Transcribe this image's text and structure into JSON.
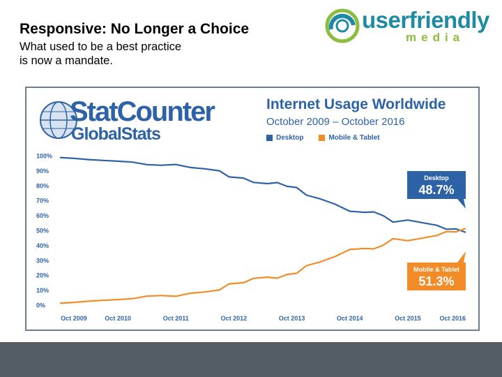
{
  "slide": {
    "title": "Responsive: No Longer a Choice",
    "subtitle_lines": [
      "What used to be a best practice",
      "is now a mandate."
    ]
  },
  "logo": {
    "word1": "userfriendly",
    "word2": "media"
  },
  "statcounter": {
    "word1": "StatCounter",
    "word2": "GlobalStats"
  },
  "colors": {
    "desktop": "#2d62a6",
    "mobile": "#f28c28",
    "frame": "#6a7f91",
    "bottom_bar": "#535d63"
  },
  "chart_data": {
    "type": "line",
    "title": "Internet Usage Worldwide",
    "subtitle": "October 2009 – October 2016",
    "x_ticks": [
      "Oct 2009",
      "Oct 2010",
      "Oct 2011",
      "Oct 2012",
      "Oct 2013",
      "Oct 2014",
      "Oct 2015",
      "Oct 2016"
    ],
    "y_ticks": [
      "0%",
      "10%",
      "20%",
      "30%",
      "40%",
      "50%",
      "60%",
      "70%",
      "80%",
      "90%",
      "100%"
    ],
    "ylim": [
      0,
      100
    ],
    "legend_position": "top",
    "series": [
      {
        "name": "Desktop",
        "final_label": "48.7%",
        "points": [
          [
            "2009-10-01",
            98.8
          ],
          [
            "2010-01-01",
            98.2
          ],
          [
            "2010-04-01",
            97.4
          ],
          [
            "2010-07-01",
            96.8
          ],
          [
            "2010-10-01",
            96.3
          ],
          [
            "2011-01-01",
            95.7
          ],
          [
            "2011-04-01",
            94.0
          ],
          [
            "2011-07-01",
            93.6
          ],
          [
            "2011-10-01",
            94.1
          ],
          [
            "2012-01-01",
            92.1
          ],
          [
            "2012-04-01",
            91.2
          ],
          [
            "2012-07-01",
            89.9
          ],
          [
            "2012-09-01",
            85.8
          ],
          [
            "2012-12-01",
            85.0
          ],
          [
            "2013-02-01",
            82.1
          ],
          [
            "2013-05-01",
            81.3
          ],
          [
            "2013-07-01",
            82.0
          ],
          [
            "2013-09-01",
            79.5
          ],
          [
            "2013-11-01",
            78.7
          ],
          [
            "2014-01-01",
            73.6
          ],
          [
            "2014-04-01",
            71.0
          ],
          [
            "2014-07-01",
            67.5
          ],
          [
            "2014-10-01",
            62.8
          ],
          [
            "2015-01-01",
            62.1
          ],
          [
            "2015-03-01",
            62.4
          ],
          [
            "2015-05-01",
            59.8
          ],
          [
            "2015-07-01",
            55.5
          ],
          [
            "2015-10-01",
            56.9
          ],
          [
            "2016-01-01",
            55.2
          ],
          [
            "2016-04-01",
            53.4
          ],
          [
            "2016-06-01",
            50.8
          ],
          [
            "2016-08-01",
            51.0
          ],
          [
            "2016-10-01",
            48.7
          ]
        ]
      },
      {
        "name": "Mobile & Tablet",
        "final_label": "51.3%",
        "points": [
          [
            "2009-10-01",
            1.2
          ],
          [
            "2010-01-01",
            1.8
          ],
          [
            "2010-04-01",
            2.6
          ],
          [
            "2010-07-01",
            3.2
          ],
          [
            "2010-10-01",
            3.7
          ],
          [
            "2011-01-01",
            4.3
          ],
          [
            "2011-04-01",
            6.0
          ],
          [
            "2011-07-01",
            6.4
          ],
          [
            "2011-10-01",
            5.9
          ],
          [
            "2012-01-01",
            7.9
          ],
          [
            "2012-04-01",
            8.8
          ],
          [
            "2012-07-01",
            10.1
          ],
          [
            "2012-09-01",
            14.2
          ],
          [
            "2012-12-01",
            15.0
          ],
          [
            "2013-02-01",
            17.9
          ],
          [
            "2013-05-01",
            18.7
          ],
          [
            "2013-07-01",
            18.0
          ],
          [
            "2013-09-01",
            20.5
          ],
          [
            "2013-11-01",
            21.3
          ],
          [
            "2014-01-01",
            26.4
          ],
          [
            "2014-04-01",
            29.0
          ],
          [
            "2014-07-01",
            32.5
          ],
          [
            "2014-10-01",
            37.2
          ],
          [
            "2015-01-01",
            37.9
          ],
          [
            "2015-03-01",
            37.6
          ],
          [
            "2015-05-01",
            40.2
          ],
          [
            "2015-07-01",
            44.5
          ],
          [
            "2015-10-01",
            43.1
          ],
          [
            "2016-01-01",
            44.8
          ],
          [
            "2016-04-01",
            46.6
          ],
          [
            "2016-06-01",
            49.2
          ],
          [
            "2016-08-01",
            49.0
          ],
          [
            "2016-10-01",
            51.3
          ]
        ]
      }
    ]
  }
}
